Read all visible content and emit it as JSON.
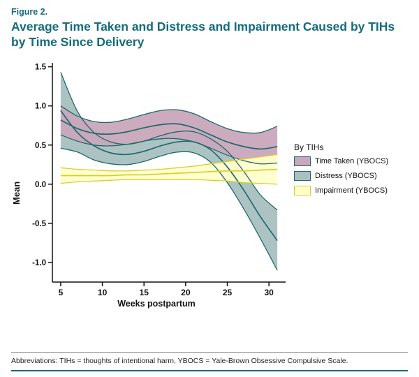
{
  "figure": {
    "label": "Figure 2.",
    "title": "Average Time Taken and Distress and Impairment Caused by TIHs by Time Since Delivery"
  },
  "footer": {
    "abbreviations": "Abbreviations: TIHs = thoughts of intentional harm, YBOCS = Yale-Brown Obsessive Compulsive Scale."
  },
  "colors": {
    "accent_teal": "#166b7d",
    "axis": "#111111",
    "time_taken_fill": "#c9a7bc",
    "distress_fill": "#a9c0c0",
    "impairment_fill": "#ffffcc",
    "dark_line": "#1f6a6a",
    "yellow_line": "#d9ce2a"
  },
  "chart_data": {
    "type": "line",
    "title": "",
    "xlabel": "Weeks postpartum",
    "ylabel": "Mean",
    "legend_title": "By TIHs",
    "legend_position": "right",
    "grid": false,
    "xlim": [
      4,
      32
    ],
    "ylim": [
      -1.25,
      1.55
    ],
    "xticks": [
      5,
      10,
      15,
      20,
      25,
      30
    ],
    "yticks": [
      -1.0,
      -0.5,
      0.0,
      0.5,
      1.0,
      1.5
    ],
    "x": [
      5,
      7,
      9,
      11,
      13,
      15,
      17,
      19,
      21,
      23,
      25,
      27,
      29,
      31
    ],
    "draw_order": [
      1,
      0,
      2
    ],
    "series": [
      {
        "name": "Time Taken (YBOCS)",
        "fill": "#c9a7bc",
        "line": "#1f6a6a",
        "mean": [
          0.82,
          0.71,
          0.65,
          0.64,
          0.67,
          0.72,
          0.76,
          0.77,
          0.72,
          0.63,
          0.54,
          0.48,
          0.45,
          0.48
        ],
        "upper": [
          1.0,
          0.87,
          0.8,
          0.79,
          0.83,
          0.89,
          0.94,
          0.95,
          0.9,
          0.8,
          0.71,
          0.66,
          0.66,
          0.74
        ],
        "lower": [
          0.63,
          0.55,
          0.5,
          0.49,
          0.51,
          0.55,
          0.58,
          0.58,
          0.54,
          0.46,
          0.37,
          0.3,
          0.26,
          0.27
        ]
      },
      {
        "name": "Distress (YBOCS)",
        "fill": "#a9c0c0",
        "line": "#1f6a6a",
        "mean": [
          0.94,
          0.66,
          0.49,
          0.4,
          0.38,
          0.42,
          0.49,
          0.54,
          0.54,
          0.44,
          0.22,
          -0.08,
          -0.42,
          -0.72
        ],
        "upper": [
          1.43,
          0.93,
          0.66,
          0.54,
          0.51,
          0.55,
          0.62,
          0.67,
          0.67,
          0.58,
          0.42,
          0.16,
          -0.14,
          -0.33
        ],
        "lower": [
          0.46,
          0.41,
          0.31,
          0.26,
          0.25,
          0.29,
          0.36,
          0.41,
          0.4,
          0.28,
          0.02,
          -0.32,
          -0.7,
          -1.1
        ]
      },
      {
        "name": "Impairment (YBOCS)",
        "fill": "#ffffcc",
        "line": "#d9ce2a",
        "mean": [
          0.11,
          0.11,
          0.11,
          0.11,
          0.12,
          0.12,
          0.13,
          0.14,
          0.15,
          0.16,
          0.17,
          0.17,
          0.18,
          0.19
        ],
        "upper": [
          0.21,
          0.19,
          0.18,
          0.17,
          0.17,
          0.18,
          0.19,
          0.21,
          0.23,
          0.26,
          0.29,
          0.32,
          0.35,
          0.38
        ],
        "lower": [
          0.01,
          0.03,
          0.04,
          0.05,
          0.06,
          0.06,
          0.06,
          0.06,
          0.06,
          0.05,
          0.04,
          0.02,
          0.01,
          0.0
        ]
      }
    ]
  }
}
